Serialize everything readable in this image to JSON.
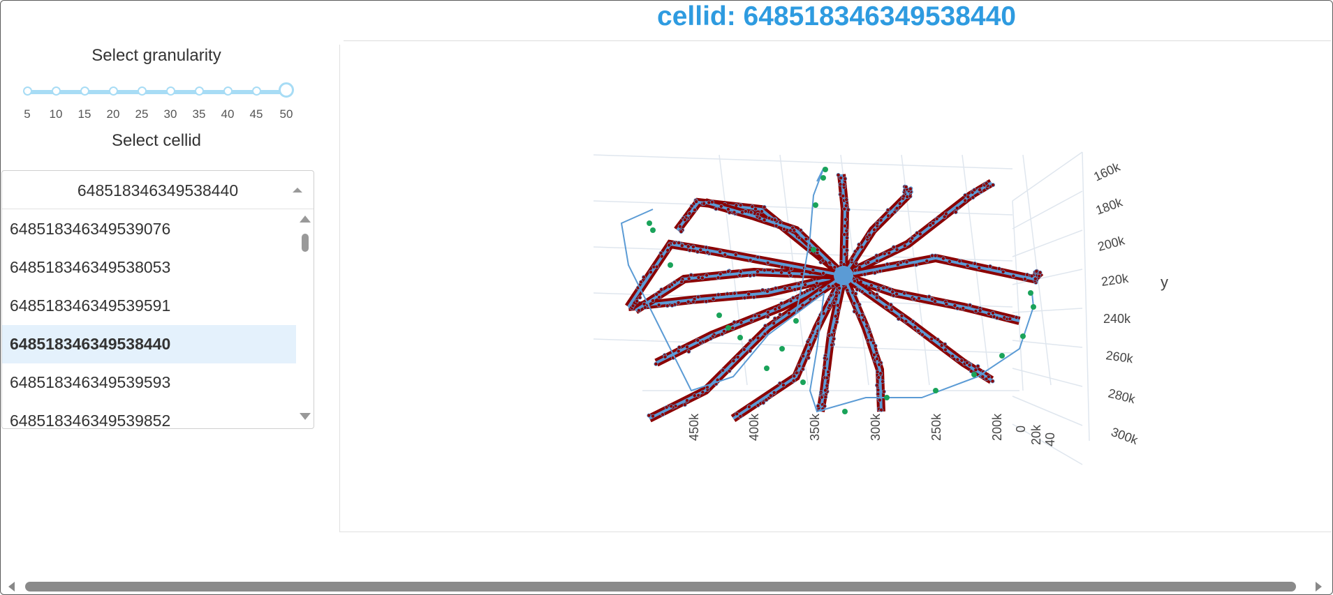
{
  "header": {
    "title": "cellid: 648518346349538440"
  },
  "controls": {
    "granularity_label": "Select granularity",
    "cellid_label": "Select cellid",
    "slider": {
      "ticks": [
        "5",
        "10",
        "15",
        "20",
        "25",
        "30",
        "35",
        "40",
        "45",
        "50"
      ],
      "value": 50
    },
    "dropdown": {
      "value": "648518346349538440",
      "options": [
        "648518346349539076",
        "648518346349538053",
        "648518346349539591",
        "648518346349538440",
        "648518346349539593",
        "648518346349539852"
      ],
      "selected_index": 3
    }
  },
  "plot": {
    "x_ticks": [
      "450k",
      "400k",
      "350k",
      "300k",
      "250k",
      "200k"
    ],
    "z_ticks": [
      "0",
      "20k",
      "40"
    ],
    "y_ticks": [
      "160k",
      "180k",
      "200k",
      "220k",
      "240k",
      "260k",
      "280k",
      "300k"
    ],
    "y_axis_title": "y",
    "colors": {
      "skeleton": "#5b9bd5",
      "synapse": "#8b0000",
      "marker": "#1aa35a",
      "grid": "#dfe6ee"
    }
  }
}
